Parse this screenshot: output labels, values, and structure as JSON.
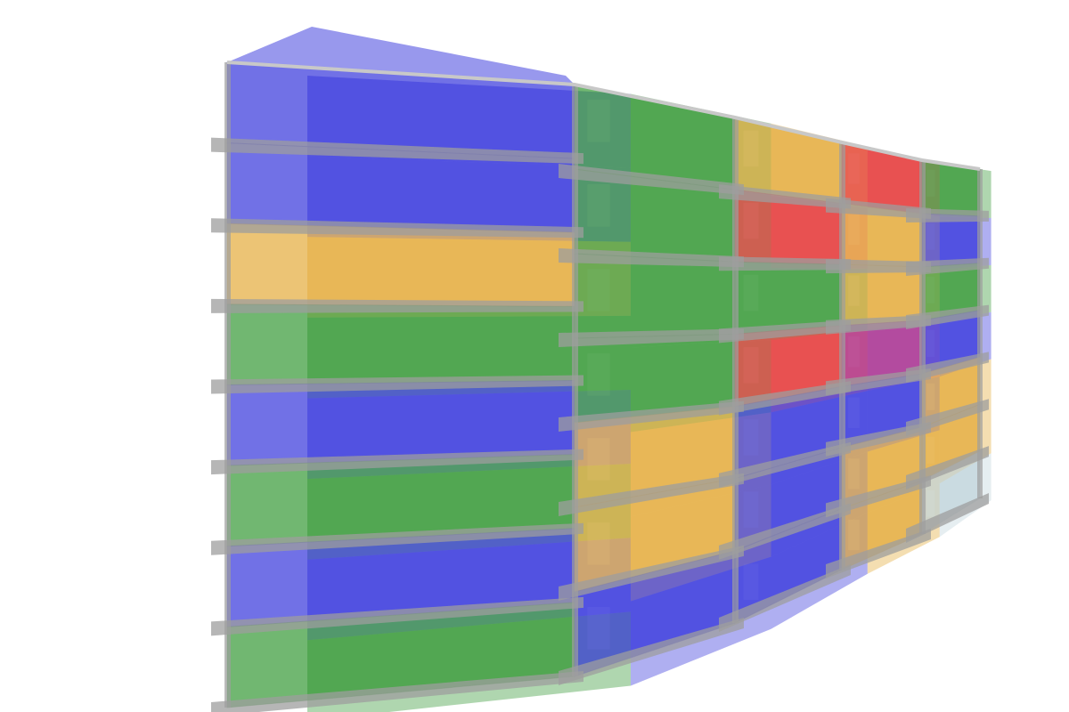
{
  "model": {
    "view": "3d-perspective",
    "palette": {
      "blue": "#1a1ad6",
      "green": "#1a8a1a",
      "orange": "#e0a020",
      "red": "#e01818",
      "magenta": "#9a1080",
      "pale": "#b8cfd6",
      "slab": "#9e9e9e"
    },
    "bays": [
      {
        "floors": [
          "blue",
          "blue",
          "orange",
          "green",
          "blue",
          "green",
          "blue",
          "green"
        ]
      },
      {
        "floors": [
          "green",
          "green",
          "green",
          "green",
          "orange",
          "orange",
          "blue"
        ]
      },
      {
        "floors": [
          "orange",
          "red",
          "green",
          "red",
          "blue",
          "blue",
          "blue"
        ]
      },
      {
        "floors": [
          "red",
          "orange",
          "orange",
          "magenta",
          "blue",
          "orange",
          "orange"
        ]
      },
      {
        "floors": [
          "green",
          "blue",
          "green",
          "blue",
          "orange",
          "orange",
          "pale"
        ]
      }
    ]
  }
}
